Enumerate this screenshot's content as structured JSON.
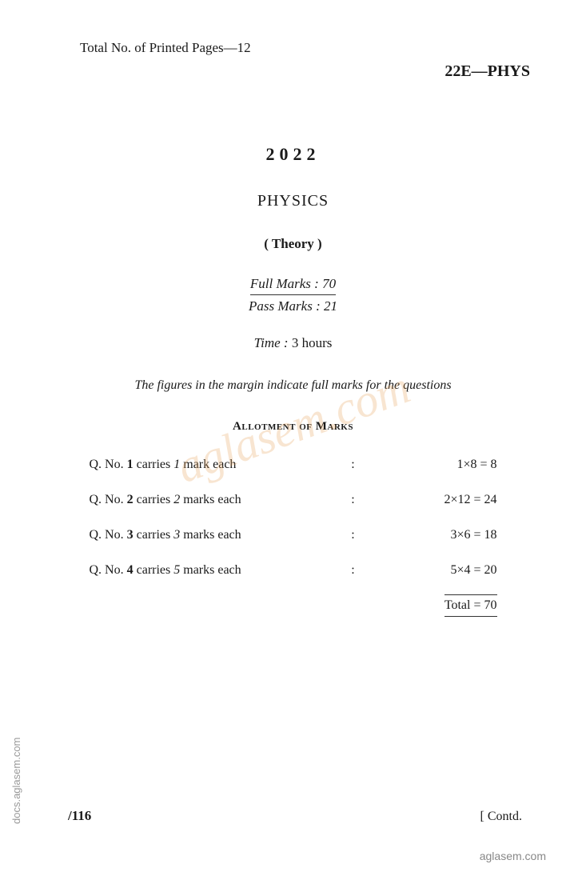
{
  "header": {
    "pages_label": "Total No. of Printed Pages—12",
    "code": "22E—PHYS"
  },
  "title": {
    "year": "2022",
    "subject": "PHYSICS",
    "theory": "( Theory )"
  },
  "marks": {
    "full": "Full Marks : 70",
    "pass": "Pass Marks : 21",
    "time_label": "Time :",
    "time_value": " 3 hours"
  },
  "instruction": "The figures in the margin indicate full marks for the questions",
  "allotment_header": "Allotment of Marks",
  "allotment_rows": [
    {
      "label_pre": "Q. No. ",
      "num": "1",
      "label_mid": " carries ",
      "count": "1",
      "label_post": " mark each",
      "calc": "1×8 = 8"
    },
    {
      "label_pre": "Q. No. ",
      "num": "2",
      "label_mid": " carries ",
      "count": "2",
      "label_post": " marks each",
      "calc": "2×12 = 24"
    },
    {
      "label_pre": "Q. No. ",
      "num": "3",
      "label_mid": " carries ",
      "count": "3",
      "label_post": " marks each",
      "calc": "3×6 = 18"
    },
    {
      "label_pre": "Q. No. ",
      "num": "4",
      "label_mid": " carries ",
      "count": "5",
      "label_post": " marks each",
      "calc": "5×4 = 20"
    }
  ],
  "total": "Total = 70",
  "footer": {
    "left": "/116",
    "right": "[ Contd."
  },
  "watermark": {
    "side": "docs.aglasem.com",
    "bottom": "aglasem.com",
    "center": "aglasem.com"
  }
}
